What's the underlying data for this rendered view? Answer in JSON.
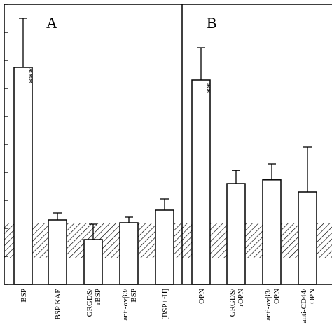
{
  "chart_data": [
    {
      "type": "bar",
      "panel_label": "A",
      "title": "",
      "xlabel": "",
      "ylabel": "",
      "ylim": [
        0,
        10
      ],
      "y_tick_values": [
        0,
        1,
        2,
        3,
        4,
        5,
        6,
        7,
        8,
        9,
        10
      ],
      "categories": [
        "BSP",
        "BSP KAE",
        "GRGDS/\nrBSP",
        "anti-αvβ3/\nBSP",
        "[BSP+fH]"
      ],
      "values": [
        7.75,
        2.3,
        1.6,
        2.2,
        2.65
      ],
      "errors": [
        1.75,
        0.25,
        0.55,
        0.2,
        0.4
      ],
      "annotations": [
        "***",
        "",
        "",
        "",
        ""
      ],
      "reference_band": [
        0.95,
        2.2
      ],
      "grid": false,
      "legend": "none"
    },
    {
      "type": "bar",
      "panel_label": "B",
      "title": "",
      "xlabel": "",
      "ylabel": "",
      "ylim": [
        0,
        10
      ],
      "categories": [
        "OPN",
        "GRGDS/\nrOPN",
        "anti-αvβ3/\nOPN",
        "anti-CD44/\nOPN"
      ],
      "values": [
        7.3,
        3.6,
        3.73,
        3.3
      ],
      "errors": [
        1.15,
        0.47,
        0.57,
        1.6
      ],
      "annotations": [
        "**",
        "",
        "",
        ""
      ],
      "reference_band": [
        0.95,
        2.2
      ],
      "grid": false,
      "legend": "none"
    }
  ],
  "colors": {
    "background": "#ffffff",
    "ink": "#000000",
    "bar_fill": "#ffffff"
  }
}
